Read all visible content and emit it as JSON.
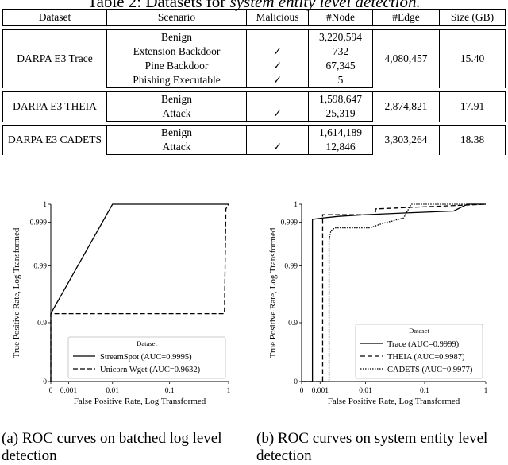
{
  "table": {
    "caption_prefix": "Table 2: Datasets for",
    "caption_italic": "system entity level detection.",
    "headers": [
      "Dataset",
      "Scenario",
      "Malicious",
      "#Node",
      "#Edge",
      "Size (GB)"
    ],
    "groups": [
      {
        "dataset": "DARPA E3 Trace",
        "rows": [
          {
            "scenario": "Benign",
            "malicious": "",
            "nodes": "3,220,594"
          },
          {
            "scenario": "Extension Backdoor",
            "malicious": "✓",
            "nodes": "732"
          },
          {
            "scenario": "Pine Backdoor",
            "malicious": "✓",
            "nodes": "67,345"
          },
          {
            "scenario": "Phishing Executable",
            "malicious": "✓",
            "nodes": "5"
          }
        ],
        "edges": "4,080,457",
        "size": "15.40"
      },
      {
        "dataset": "DARPA E3 THEIA",
        "rows": [
          {
            "scenario": "Benign",
            "malicious": "",
            "nodes": "1,598,647"
          },
          {
            "scenario": "Attack",
            "malicious": "✓",
            "nodes": "25,319"
          }
        ],
        "edges": "2,874,821",
        "size": "17.91"
      },
      {
        "dataset": "DARPA E3 CADETS",
        "rows": [
          {
            "scenario": "Benign",
            "malicious": "",
            "nodes": "1,614,189"
          },
          {
            "scenario": "Attack",
            "malicious": "✓",
            "nodes": "12,846"
          }
        ],
        "edges": "3,303,264",
        "size": "18.38"
      }
    ]
  },
  "figures": {
    "left_caption": [
      "(a)  ROC curves on batched log level",
      "detection"
    ],
    "right_caption": [
      "(b)  ROC curves on system entity level",
      "detection"
    ]
  },
  "chart_data": [
    {
      "type": "line",
      "xlabel": "False Positive Rate, Log Transformed",
      "ylabel": "True Positive Rate, Log Transformed",
      "x_ticks": [
        "0",
        "0.001",
        "0.01",
        "0.1",
        "1"
      ],
      "y_ticks": [
        "0",
        "0.9",
        "0.99",
        "0.999",
        "1"
      ],
      "legend_title": "Dataset",
      "legend_position": "lower-right",
      "series": [
        {
          "name": "StreamSpot (AUC=0.9995)",
          "style": "solid",
          "points": [
            [
              0,
              0
            ],
            [
              0,
              0.93
            ],
            [
              0.01,
              1
            ],
            [
              1,
              1
            ]
          ]
        },
        {
          "name": "Unicorn Wget (AUC=0.9632)",
          "style": "dashed",
          "points": [
            [
              0,
              0
            ],
            [
              0,
              0.93
            ],
            [
              0.85,
              0.93
            ],
            [
              0.9,
              0.9998
            ],
            [
              1,
              1
            ]
          ]
        }
      ]
    },
    {
      "type": "line",
      "xlabel": "False Positive Rate, Log Transformed",
      "ylabel": "True Positive Rate, Log Transformed",
      "x_ticks": [
        "0",
        "0.001",
        "0.01",
        "0.1",
        "1"
      ],
      "y_ticks": [
        "0",
        "0.9",
        "0.99",
        "0.999",
        "1"
      ],
      "legend_title": "Dataset",
      "legend_position": "lower-right",
      "series": [
        {
          "name": "Trace (AUC=0.9999)",
          "style": "solid",
          "points": [
            [
              0,
              0
            ],
            [
              0.0005,
              0
            ],
            [
              0.0005,
              0.9992
            ],
            [
              0.0013,
              0.9993
            ],
            [
              0.003,
              0.9994
            ],
            [
              0.01,
              0.9995
            ],
            [
              0.05,
              0.9996
            ],
            [
              0.3,
              0.9997
            ],
            [
              0.5,
              1
            ],
            [
              1,
              1
            ]
          ]
        },
        {
          "name": "THEIA (AUC=0.9987)",
          "style": "dashed",
          "points": [
            [
              0,
              0
            ],
            [
              0.0012,
              0
            ],
            [
              0.0012,
              0.9995
            ],
            [
              0.015,
              0.9995
            ],
            [
              0.015,
              0.9998
            ],
            [
              1,
              1
            ]
          ]
        },
        {
          "name": "CADETS (AUC=0.9977)",
          "style": "dotted",
          "points": [
            [
              0,
              0
            ],
            [
              0.0018,
              0
            ],
            [
              0.0018,
              0.997
            ],
            [
              0.002,
              0.9982
            ],
            [
              0.0025,
              0.9985
            ],
            [
              0.012,
              0.9985
            ],
            [
              0.02,
              0.9989
            ],
            [
              0.03,
              0.9991
            ],
            [
              0.045,
              0.9993
            ],
            [
              0.06,
              1
            ],
            [
              1,
              1
            ]
          ]
        }
      ]
    }
  ]
}
